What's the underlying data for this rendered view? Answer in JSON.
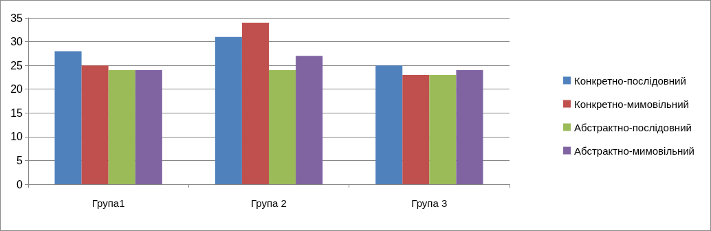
{
  "chart_data": {
    "type": "bar",
    "categories": [
      "Група1",
      "Група 2",
      "Група 3"
    ],
    "series": [
      {
        "name": "Конкретно-послідовний",
        "color": "#4f81bd",
        "values": [
          28,
          31,
          25
        ]
      },
      {
        "name": "Конкретно-мимовільний",
        "color": "#c0504d",
        "values": [
          25,
          34,
          23
        ]
      },
      {
        "name": "Абстрактно-послідовний",
        "color": "#9bbb59",
        "values": [
          24,
          24,
          23
        ]
      },
      {
        "name": "Абстрактно-мимовільний",
        "color": "#8064a2",
        "values": [
          24,
          27,
          24
        ]
      }
    ],
    "ylim": [
      0,
      35
    ],
    "yticks": [
      0,
      5,
      10,
      15,
      20,
      25,
      30,
      35
    ],
    "grid": "y",
    "legend": "right"
  }
}
